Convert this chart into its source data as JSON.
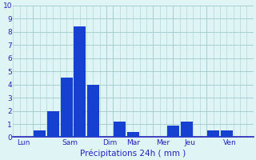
{
  "bars": [
    {
      "x": 2.0,
      "value": 0.5
    },
    {
      "x": 3.0,
      "value": 2.0
    },
    {
      "x": 4.0,
      "value": 4.5
    },
    {
      "x": 5.0,
      "value": 8.4
    },
    {
      "x": 6.0,
      "value": 4.0
    },
    {
      "x": 8.0,
      "value": 1.2
    },
    {
      "x": 9.0,
      "value": 0.4
    },
    {
      "x": 12.0,
      "value": 0.9
    },
    {
      "x": 13.0,
      "value": 1.2
    },
    {
      "x": 15.0,
      "value": 0.5
    },
    {
      "x": 16.0,
      "value": 0.5
    }
  ],
  "day_labels": [
    "Lun",
    "Sam",
    "Dim",
    "Mar",
    "Mer",
    "Jeu",
    "Ven"
  ],
  "xlabel": "Précipitations 24h ( mm )",
  "ylim": [
    0,
    10
  ],
  "yticks": [
    0,
    1,
    2,
    3,
    4,
    5,
    6,
    7,
    8,
    9,
    10
  ],
  "bar_color": "#1540d0",
  "bg_color": "#dff5f5",
  "grid_color": "#a8cece",
  "bar_width": 0.9,
  "xlabel_color": "#2222bb",
  "tick_color": "#2222bb",
  "xlim": [
    0,
    18
  ]
}
